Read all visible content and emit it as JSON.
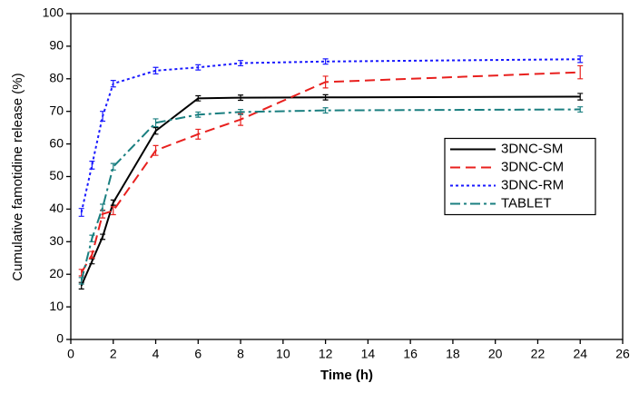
{
  "chart_data": {
    "type": "line",
    "xlabel": "Time (h)",
    "ylabel": "Cumulative famotidine release (%)",
    "x": [
      0.5,
      1,
      1.5,
      2,
      4,
      6,
      8,
      12,
      24
    ],
    "series": [
      {
        "name": "3DNC-SM",
        "color": "#000000",
        "dash": "solid",
        "values": [
          16.5,
          24,
          31.5,
          42,
          64,
          74,
          74.2,
          74.3,
          74.5
        ],
        "errors": [
          1,
          0.8,
          0.8,
          0.8,
          1,
          0.8,
          0.8,
          0.8,
          1
        ]
      },
      {
        "name": "3DNC-CM",
        "color": "#e8201e",
        "dash": "dashed",
        "values": [
          20.5,
          26,
          38.5,
          39.5,
          58,
          63,
          67.5,
          79,
          82
        ],
        "errors": [
          1,
          1,
          1.2,
          1.2,
          1.5,
          1.5,
          1.8,
          1.8,
          2
        ]
      },
      {
        "name": "3DNC-RM",
        "color": "#1a1aff",
        "dash": "dotted",
        "values": [
          39,
          53.5,
          68.5,
          78.5,
          82.5,
          83.5,
          84.8,
          85.3,
          86
        ],
        "errors": [
          1.2,
          1.2,
          1.5,
          1,
          1,
          0.8,
          0.8,
          0.8,
          1
        ]
      },
      {
        "name": "TABLET",
        "color": "#1a7f80",
        "dash": "dashdot",
        "values": [
          18,
          31,
          40.5,
          53,
          66.5,
          69,
          69.8,
          70.3,
          70.6
        ],
        "errors": [
          1,
          1,
          1,
          1,
          1.2,
          0.8,
          0.8,
          0.8,
          0.8
        ]
      }
    ],
    "xlim": [
      0,
      26
    ],
    "xticks": [
      0,
      2,
      4,
      6,
      8,
      10,
      12,
      14,
      16,
      18,
      20,
      22,
      24,
      26
    ],
    "ylim": [
      0,
      100
    ],
    "yticks": [
      0,
      10,
      20,
      30,
      40,
      50,
      60,
      70,
      80,
      90,
      100
    ],
    "grid": false,
    "legend": "center right"
  }
}
